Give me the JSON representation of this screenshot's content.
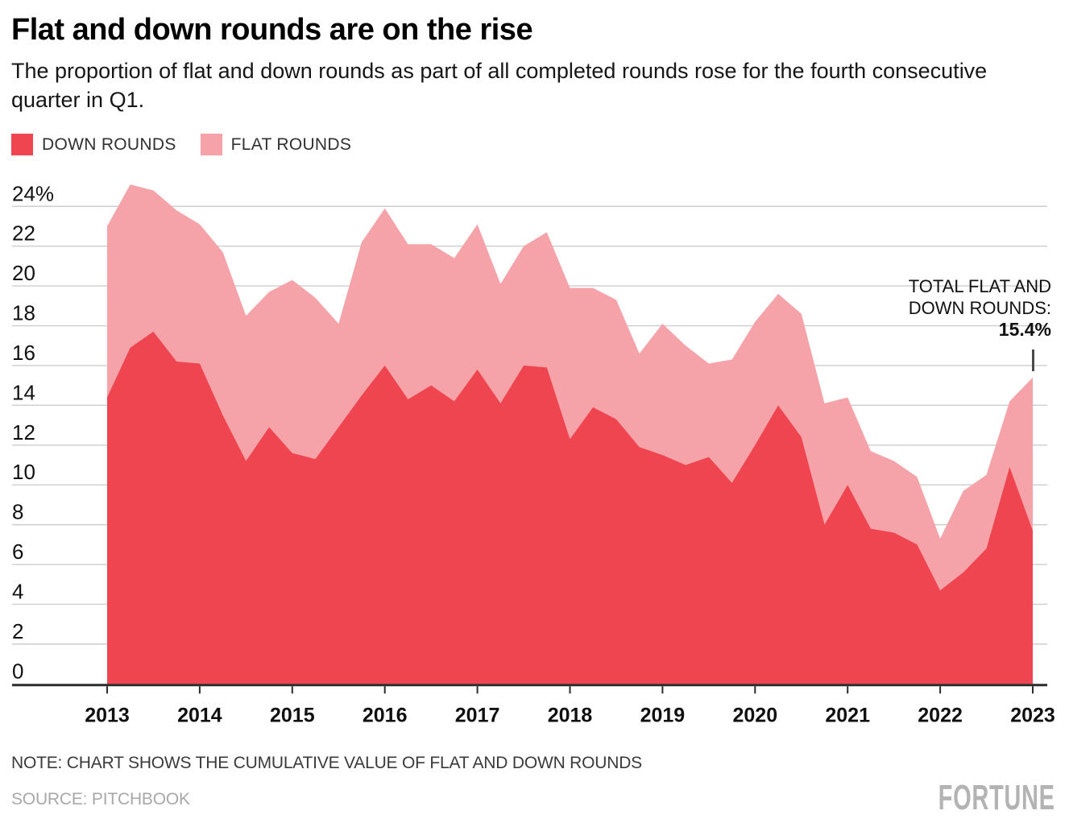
{
  "header": {
    "title": "Flat and down rounds are on the rise",
    "subtitle": "The proportion of flat and down rounds as part of all completed rounds rose for the fourth consecutive quarter in Q1."
  },
  "legend": [
    {
      "label": "DOWN ROUNDS",
      "color": "#EF4550"
    },
    {
      "label": "FLAT ROUNDS",
      "color": "#F5A2A8"
    }
  ],
  "annotation": {
    "line1": "TOTAL FLAT AND",
    "line2": "DOWN ROUNDS:",
    "value": "15.4%"
  },
  "footer": {
    "note": "NOTE: CHART SHOWS THE CUMULATIVE VALUE OF FLAT AND DOWN ROUNDS",
    "source": "SOURCE: PITCHBOOK",
    "logo": "FORTUNE"
  },
  "colors": {
    "down": "#EF4550",
    "flat": "#F5A2A8",
    "gridline": "#cdcdcd",
    "axis": "#2b2b2b",
    "annotation_tick": "#4a4a4a"
  },
  "chart_data": {
    "type": "area",
    "stacked": true,
    "title": "Flat and down rounds are on the rise",
    "x_unit": "quarter",
    "x_range": [
      "Q1 2013",
      "Q1 2023"
    ],
    "ylim": [
      0,
      24
    ],
    "grid": true,
    "legend_position": "top-left",
    "y_ticks": [
      "24%",
      "22",
      "20",
      "18",
      "16",
      "14",
      "12",
      "10",
      "8",
      "6",
      "4",
      "2",
      "0"
    ],
    "x_ticks": [
      "2013",
      "2014",
      "2015",
      "2016",
      "2017",
      "2018",
      "2019",
      "2020",
      "2021",
      "2022",
      "2023"
    ],
    "categories": [
      "Q1 2013",
      "Q2 2013",
      "Q3 2013",
      "Q4 2013",
      "Q1 2014",
      "Q2 2014",
      "Q3 2014",
      "Q4 2014",
      "Q1 2015",
      "Q2 2015",
      "Q3 2015",
      "Q4 2015",
      "Q1 2016",
      "Q2 2016",
      "Q3 2016",
      "Q4 2016",
      "Q1 2017",
      "Q2 2017",
      "Q3 2017",
      "Q4 2017",
      "Q1 2018",
      "Q2 2018",
      "Q3 2018",
      "Q4 2018",
      "Q1 2019",
      "Q2 2019",
      "Q3 2019",
      "Q4 2019",
      "Q1 2020",
      "Q2 2020",
      "Q3 2020",
      "Q4 2020",
      "Q1 2021",
      "Q2 2021",
      "Q3 2021",
      "Q4 2021",
      "Q1 2022",
      "Q2 2022",
      "Q3 2022",
      "Q4 2022",
      "Q1 2023"
    ],
    "series": [
      {
        "name": "DOWN ROUNDS",
        "color": "#EF4550",
        "values": [
          14.4,
          16.9,
          17.7,
          16.2,
          16.1,
          13.5,
          11.2,
          12.9,
          11.6,
          11.3,
          12.9,
          14.5,
          16.0,
          14.3,
          15.0,
          14.2,
          15.8,
          14.1,
          16.0,
          15.9,
          12.3,
          13.9,
          13.3,
          11.9,
          11.5,
          11.0,
          11.4,
          10.1,
          12.0,
          14.0,
          12.4,
          8.0,
          10.0,
          7.8,
          7.6,
          7.0,
          4.7,
          5.6,
          6.8,
          10.9,
          7.7
        ]
      },
      {
        "name": "FLAT ROUNDS",
        "color": "#F5A2A8",
        "values": [
          8.6,
          8.2,
          7.1,
          7.6,
          7.0,
          8.2,
          7.3,
          6.8,
          8.7,
          8.1,
          5.2,
          7.7,
          7.9,
          7.8,
          7.1,
          7.2,
          7.3,
          6.0,
          6.0,
          6.8,
          7.6,
          6.0,
          6.0,
          4.7,
          6.6,
          6.0,
          4.7,
          6.2,
          6.2,
          5.6,
          6.2,
          6.1,
          4.4,
          3.9,
          3.6,
          3.4,
          2.6,
          4.1,
          3.7,
          3.3,
          7.7
        ]
      }
    ],
    "total_flat_and_down": [
      23.0,
      25.1,
      24.8,
      23.8,
      23.1,
      21.7,
      18.5,
      19.7,
      20.3,
      19.4,
      18.1,
      22.2,
      23.9,
      22.1,
      22.1,
      21.4,
      23.1,
      20.1,
      22.0,
      22.7,
      19.9,
      19.9,
      19.3,
      16.6,
      18.1,
      17.0,
      16.1,
      16.3,
      18.2,
      19.6,
      18.6,
      14.1,
      14.4,
      11.7,
      11.2,
      10.4,
      7.3,
      9.7,
      10.5,
      14.2,
      15.4
    ],
    "annotation_value": 15.4
  }
}
